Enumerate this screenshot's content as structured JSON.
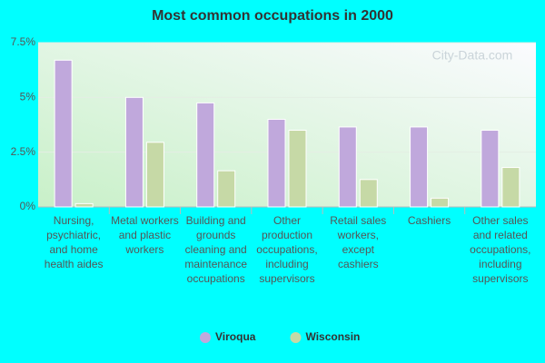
{
  "chart_data": {
    "type": "bar",
    "title": "Most common occupations in 2000",
    "watermark": "City-Data.com",
    "categories": [
      "Nursing, psychiatric, and home health aides",
      "Metal workers and plastic workers",
      "Building and grounds cleaning and maintenance occupations",
      "Other production occupations, including supervisors",
      "Retail sales workers, except cashiers",
      "Cashiers",
      "Other sales and related occupations, including supervisors"
    ],
    "series": [
      {
        "name": "Viroqua",
        "color": "#c0a8dc",
        "values": [
          6.7,
          5.0,
          4.75,
          4.0,
          3.65,
          3.65,
          3.5
        ]
      },
      {
        "name": "Wisconsin",
        "color": "#c6d9a6",
        "values": [
          0.15,
          2.95,
          1.65,
          3.5,
          1.25,
          0.4,
          1.8
        ]
      }
    ],
    "ylim": [
      0,
      7.5
    ],
    "yticks": [
      {
        "value": 0,
        "label": "0%"
      },
      {
        "value": 2.5,
        "label": "2.5%"
      },
      {
        "value": 5,
        "label": "5%"
      },
      {
        "value": 7.5,
        "label": "7.5%"
      }
    ],
    "grid": true,
    "legend": "bottom"
  }
}
